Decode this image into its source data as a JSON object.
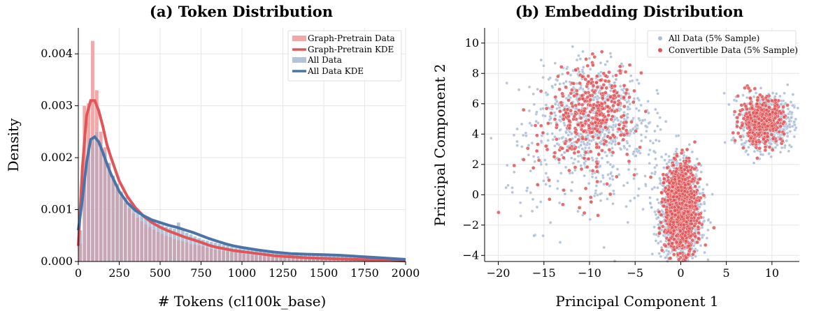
{
  "colors": {
    "graph_hist": "#f2a8a8",
    "graph_kde": "#e05557",
    "all_hist": "#b3c4da",
    "all_kde": "#4a74a8",
    "overlap_hist": "#c7a7b5",
    "convertible_points": "#e05557",
    "all_points": "#a9bcd6",
    "grid": "#e6e6e6"
  },
  "chart_data": [
    {
      "type": "bar",
      "title": "(a) Token Distribution",
      "xlabel": "# Tokens (cl100k_base)",
      "ylabel": "Density",
      "xlim": [
        0,
        2000
      ],
      "ylim": [
        0,
        0.0045
      ],
      "xticks": [
        0,
        250,
        500,
        750,
        1000,
        1250,
        1500,
        1750,
        2000
      ],
      "xtick_labels": [
        "0",
        "250",
        "500",
        "750",
        "1000",
        "1250",
        "1500",
        "1750",
        "2000"
      ],
      "yticks": [
        0,
        0.001,
        0.002,
        0.003,
        0.004
      ],
      "ytick_labels": [
        "0.000",
        "0.001",
        "0.002",
        "0.003",
        "0.004"
      ],
      "grid": true,
      "legend_position": "top-right",
      "legend": [
        "Graph-Pretrain Data",
        "Graph-Pretrain KDE",
        "All Data",
        "All Data KDE"
      ],
      "bin_width": 25,
      "bin_starts": [
        0,
        25,
        50,
        75,
        100,
        125,
        150,
        175,
        200,
        225,
        250,
        275,
        300,
        325,
        350,
        375,
        400,
        425,
        450,
        475,
        500,
        525,
        550,
        575,
        600,
        625,
        650,
        675,
        700,
        725,
        750,
        775,
        800,
        825,
        850,
        875,
        900,
        925,
        950,
        975,
        1000,
        1025,
        1050,
        1075,
        1100,
        1125,
        1150,
        1175,
        1200,
        1225,
        1250,
        1275,
        1300,
        1325,
        1350,
        1375,
        1400,
        1425,
        1450,
        1475,
        1500,
        1525,
        1550,
        1575,
        1600,
        1625,
        1650,
        1675,
        1700,
        1725,
        1750,
        1775,
        1800,
        1825,
        1850,
        1875,
        1900,
        1925,
        1950,
        1975
      ],
      "series": [
        {
          "name": "Graph-Pretrain Data",
          "kind": "hist",
          "values": [
            0.00035,
            0.003,
            0.00305,
            0.00425,
            0.0033,
            0.0025,
            0.0022,
            0.0019,
            0.00165,
            0.0014,
            0.00125,
            0.00113,
            0.00103,
            0.00093,
            0.00085,
            0.00078,
            0.00072,
            0.00067,
            0.00062,
            0.00057,
            0.00053,
            0.0005,
            0.00047,
            0.00044,
            0.00041,
            0.00039,
            0.00037,
            0.00034,
            0.00033,
            0.00031,
            0.0003,
            0.00027,
            0.00025,
            0.00023,
            0.00022,
            0.00021,
            0.0002,
            0.00019,
            0.00018,
            0.00017,
            0.00015,
            0.00014,
            0.00013,
            0.00012,
            0.00011,
            0.0001,
            0.0001,
            9e-05,
            9e-05,
            8e-05,
            8e-05,
            7e-05,
            7e-05,
            6e-05,
            6e-05,
            6e-05,
            5e-05,
            5e-05,
            5e-05,
            5e-05,
            4e-05,
            4e-05,
            4e-05,
            4e-05,
            4e-05,
            3e-05,
            3e-05,
            3e-05,
            3e-05,
            3e-05,
            3e-05,
            2e-05,
            2e-05,
            2e-05,
            2e-05,
            2e-05,
            2e-05,
            2e-05,
            1e-05,
            1e-05
          ]
        },
        {
          "name": "All Data",
          "kind": "hist",
          "values": [
            0.0006,
            0.0016,
            0.0022,
            0.0024,
            0.0025,
            0.0023,
            0.0021,
            0.0019,
            0.00165,
            0.0015,
            0.00135,
            0.00123,
            0.00113,
            0.00102,
            0.00095,
            0.00088,
            0.00084,
            0.0008,
            0.00076,
            0.00073,
            0.0007,
            0.00067,
            0.00065,
            0.00063,
            0.00075,
            0.0006,
            0.00055,
            0.00052,
            0.00048,
            0.00045,
            0.00042,
            0.0004,
            0.00038,
            0.00036,
            0.00034,
            0.00032,
            0.0003,
            0.00028,
            0.00026,
            0.00025,
            0.00024,
            0.00023,
            0.00022,
            0.00021,
            0.0002,
            0.00019,
            0.00018,
            0.00018,
            0.00017,
            0.00016,
            0.00016,
            0.00015,
            0.00015,
            0.00014,
            0.00014,
            0.00014,
            0.00013,
            0.00013,
            0.00013,
            0.00013,
            0.00012,
            0.00012,
            0.00011,
            0.00011,
            0.0001,
            0.0001,
            9e-05,
            9e-05,
            8e-05,
            8e-05,
            8e-05,
            7e-05,
            7e-05,
            6e-05,
            6e-05,
            6e-05,
            5e-05,
            5e-05,
            4e-05,
            4e-05
          ]
        },
        {
          "name": "Graph-Pretrain KDE",
          "kind": "line",
          "x": [
            0,
            25,
            50,
            75,
            100,
            125,
            150,
            175,
            200,
            250,
            300,
            350,
            400,
            450,
            500,
            550,
            600,
            650,
            700,
            750,
            800,
            850,
            900,
            950,
            1000,
            1100,
            1200,
            1300,
            1400,
            1500,
            1600,
            1700,
            1800,
            1900,
            2000
          ],
          "y": [
            0.0003,
            0.0018,
            0.0028,
            0.0031,
            0.0031,
            0.0029,
            0.0026,
            0.00225,
            0.002,
            0.00155,
            0.00125,
            0.00103,
            0.00087,
            0.00075,
            0.00066,
            0.00059,
            0.00053,
            0.00047,
            0.00042,
            0.00037,
            0.00031,
            0.00027,
            0.00024,
            0.00021,
            0.00019,
            0.00015,
            0.00011,
            9e-05,
            7e-05,
            6e-05,
            5e-05,
            4e-05,
            3e-05,
            2e-05,
            1e-05
          ]
        },
        {
          "name": "All Data KDE",
          "kind": "line",
          "x": [
            0,
            25,
            50,
            75,
            100,
            125,
            150,
            175,
            200,
            250,
            300,
            350,
            400,
            450,
            500,
            550,
            600,
            650,
            700,
            750,
            800,
            850,
            900,
            950,
            1000,
            1100,
            1200,
            1300,
            1400,
            1500,
            1600,
            1700,
            1800,
            1900,
            2000
          ],
          "y": [
            0.0006,
            0.0012,
            0.0019,
            0.00235,
            0.0024,
            0.0023,
            0.0021,
            0.00188,
            0.00168,
            0.00135,
            0.00113,
            0.00098,
            0.00088,
            0.0008,
            0.00075,
            0.0007,
            0.00066,
            0.00061,
            0.00056,
            0.0005,
            0.00044,
            0.00039,
            0.00034,
            0.0003,
            0.00027,
            0.00022,
            0.00018,
            0.00015,
            0.00014,
            0.00013,
            0.00012,
            0.0001,
            8e-05,
            6e-05,
            4e-05
          ]
        }
      ]
    },
    {
      "type": "scatter",
      "title": "(b) Embedding Distribution",
      "xlabel": "Principal Component 1",
      "ylabel": "Principal Component 2",
      "xlim": [
        -21.5,
        13
      ],
      "ylim": [
        -4.4,
        11
      ],
      "xticks": [
        -20,
        -15,
        -10,
        -5,
        0,
        5,
        10
      ],
      "xtick_labels": [
        "−20",
        "−15",
        "−10",
        "−5",
        "0",
        "5",
        "10"
      ],
      "yticks": [
        -4,
        -2,
        0,
        2,
        4,
        6,
        8,
        10
      ],
      "ytick_labels": [
        "−4",
        "−2",
        "0",
        "2",
        "4",
        "6",
        "8",
        "10"
      ],
      "grid": true,
      "legend_position": "top-right",
      "legend": [
        "All Data (5% Sample)",
        "Convertible Data (5% Sample)"
      ],
      "series": [
        {
          "name": "All Data (5% Sample)",
          "clusters": [
            {
              "center": [
                0,
                -1.2
              ],
              "spread": [
                1.1,
                1.55
              ],
              "count": 1400
            },
            {
              "center": [
                9.5,
                4.8
              ],
              "spread": [
                1.4,
                0.9
              ],
              "count": 650
            },
            {
              "center": [
                -9.5,
                5.5
              ],
              "spread": [
                2.8,
                1.6
              ],
              "count": 550
            },
            {
              "center": [
                -10,
                2.5
              ],
              "spread": [
                4.5,
                2.2
              ],
              "count": 300
            }
          ]
        },
        {
          "name": "Convertible Data (5% Sample)",
          "clusters": [
            {
              "center": [
                0,
                -0.9
              ],
              "spread": [
                0.85,
                1.4
              ],
              "count": 1100
            },
            {
              "center": [
                8.8,
                4.9
              ],
              "spread": [
                1.2,
                0.75
              ],
              "count": 420
            },
            {
              "center": [
                -9.3,
                5.6
              ],
              "spread": [
                2.0,
                1.4
              ],
              "count": 300
            },
            {
              "center": [
                -12,
                2.8
              ],
              "spread": [
                3.8,
                2.0
              ],
              "count": 90
            }
          ]
        }
      ]
    }
  ]
}
